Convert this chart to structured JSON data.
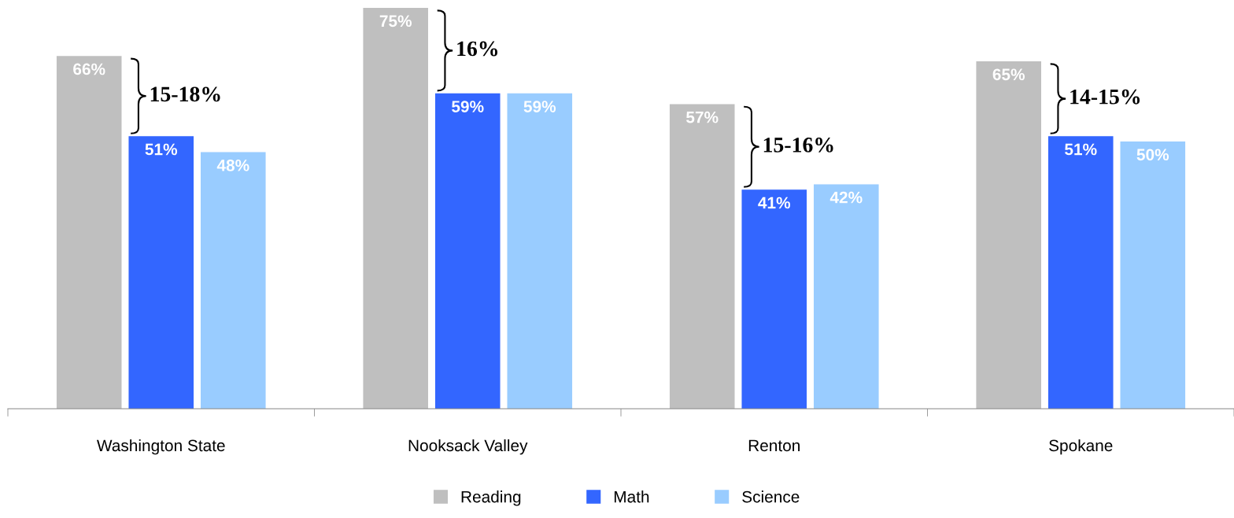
{
  "chart_data": {
    "type": "bar",
    "categories": [
      "Washington State",
      "Nooksack Valley",
      "Renton",
      "Spokane"
    ],
    "series": [
      {
        "name": "Reading",
        "color": "#bfbfbf",
        "values": [
          66,
          75,
          57,
          65
        ],
        "value_labels": [
          "66%",
          "75%",
          "57%",
          "65%"
        ]
      },
      {
        "name": "Math",
        "color": "#3366ff",
        "values": [
          51,
          59,
          41,
          51
        ],
        "value_labels": [
          "51%",
          "59%",
          "41%",
          "51%"
        ]
      },
      {
        "name": "Science",
        "color": "#99ccff",
        "values": [
          48,
          59,
          42,
          50
        ],
        "value_labels": [
          "48%",
          "59%",
          "42%",
          "50%"
        ]
      }
    ],
    "annotations": [
      "15-18%",
      "16%",
      "15-16%",
      "14-15%"
    ],
    "legend": "bottom",
    "grid": false
  }
}
